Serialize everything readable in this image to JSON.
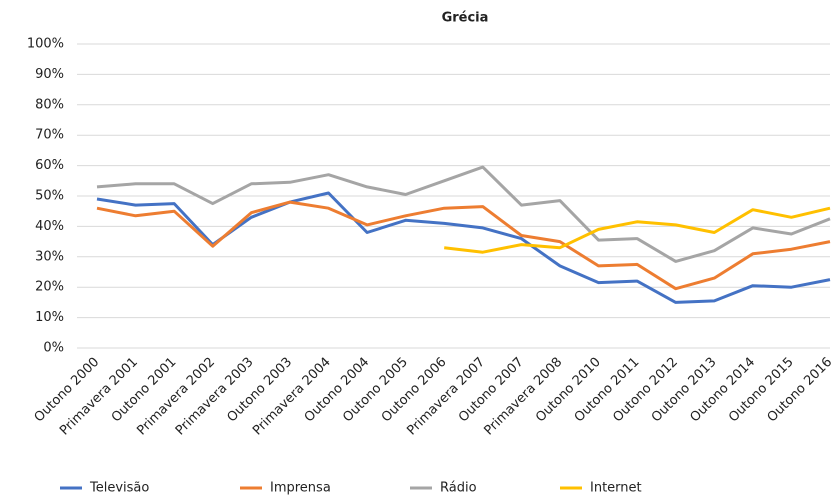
{
  "chart_data": {
    "type": "line",
    "title": "Grécia",
    "categories": [
      "Outono 2000",
      "Primavera 2001",
      "Outono 2001",
      "Primavera 2002",
      "Primavera 2003",
      "Outono 2003",
      "Primavera 2004",
      "Outono 2004",
      "Outono 2005",
      "Outono 2006",
      "Primavera 2007",
      "Outono 2007",
      "Primavera 2008",
      "Outono 2010",
      "Outono 2011",
      "Outono 2012",
      "Outono 2013",
      "Outono 2014",
      "Outono 2015",
      "Outono 2016"
    ],
    "series": [
      {
        "name": "Televisão",
        "color": "#4472c4",
        "values": [
          49,
          47,
          47.5,
          34,
          43,
          48,
          51,
          38,
          42,
          41,
          39.5,
          36,
          27,
          21.5,
          22,
          15,
          15.5,
          20.5,
          20,
          22.5
        ]
      },
      {
        "name": "Imprensa",
        "color": "#ed7d31",
        "values": [
          46,
          43.5,
          45,
          33.5,
          44.5,
          48,
          46,
          40.5,
          43.5,
          46,
          46.5,
          37,
          35,
          27,
          27.5,
          19.5,
          23,
          31,
          32.5,
          35
        ]
      },
      {
        "name": "Rádio",
        "color": "#a5a5a5",
        "values": [
          53,
          54,
          54,
          47.5,
          54,
          54.5,
          57,
          53,
          50.5,
          55,
          59.5,
          47,
          48.5,
          35.5,
          36,
          28.5,
          32,
          39.5,
          37.5,
          42.5
        ]
      },
      {
        "name": "Internet",
        "color": "#ffc000",
        "values": [
          null,
          null,
          null,
          null,
          null,
          null,
          null,
          null,
          null,
          33,
          31.5,
          34,
          33,
          39,
          41.5,
          40.5,
          38,
          45.5,
          43,
          46
        ]
      }
    ],
    "ylim": [
      0,
      100
    ],
    "yticks": [
      {
        "value": 0,
        "label": "0%"
      },
      {
        "value": 10,
        "label": "10%"
      },
      {
        "value": 20,
        "label": "20%"
      },
      {
        "value": 30,
        "label": "30%"
      },
      {
        "value": 40,
        "label": "40%"
      },
      {
        "value": 50,
        "label": "50%"
      },
      {
        "value": 60,
        "label": "60%"
      },
      {
        "value": 70,
        "label": "70%"
      },
      {
        "value": 80,
        "label": "80%"
      },
      {
        "value": 90,
        "label": "90%"
      },
      {
        "value": 100,
        "label": "100%"
      }
    ],
    "grid": true,
    "legend": "bottom"
  }
}
